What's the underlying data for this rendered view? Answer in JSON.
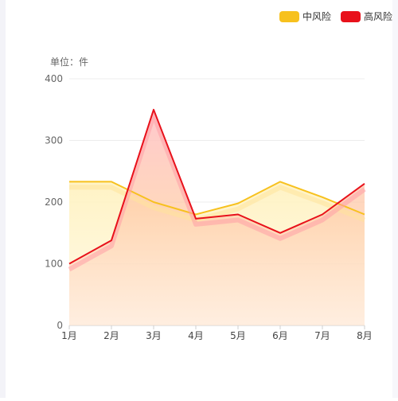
{
  "chart_data": {
    "type": "area",
    "unit_label": "单位：件",
    "categories": [
      "1月",
      "2月",
      "3月",
      "4月",
      "5月",
      "6月",
      "7月",
      "8月"
    ],
    "ylim": [
      0,
      400
    ],
    "yticks": [
      0,
      100,
      200,
      300,
      400
    ],
    "grid": true,
    "legend_position": "top-right",
    "series": [
      {
        "name": "中风险",
        "color": "#f7c11e",
        "values": [
          233,
          233,
          200,
          180,
          198,
          233,
          208,
          180
        ]
      },
      {
        "name": "高风险",
        "color": "#e8111b",
        "values": [
          100,
          138,
          350,
          173,
          180,
          150,
          180,
          230
        ]
      }
    ]
  }
}
